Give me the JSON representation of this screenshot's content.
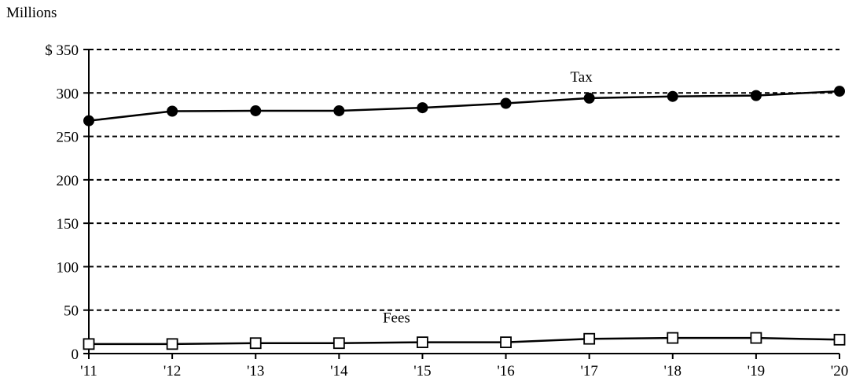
{
  "chart_data": {
    "type": "line",
    "ylabel": "Millions",
    "y_tick_labels": [
      "0",
      "50",
      "100",
      "150",
      "200",
      "250",
      "300",
      "$ 350"
    ],
    "y_ticks": [
      0,
      50,
      100,
      150,
      200,
      250,
      300,
      350
    ],
    "ylim": [
      0,
      350
    ],
    "categories": [
      "'11",
      "'12",
      "'13",
      "'14",
      "'15",
      "'16",
      "'17",
      "'18",
      "'19",
      "'20"
    ],
    "grid": "horizontal dashed",
    "series": [
      {
        "name": "Tax",
        "marker": "filled-circle",
        "color": "#000000",
        "values": [
          268,
          279,
          279.5,
          279.5,
          283,
          288,
          294,
          296,
          297,
          302
        ]
      },
      {
        "name": "Fees",
        "marker": "open-square",
        "color": "#000000",
        "values": [
          11,
          11,
          12,
          12,
          13,
          13,
          17,
          18,
          18,
          16
        ]
      }
    ]
  }
}
